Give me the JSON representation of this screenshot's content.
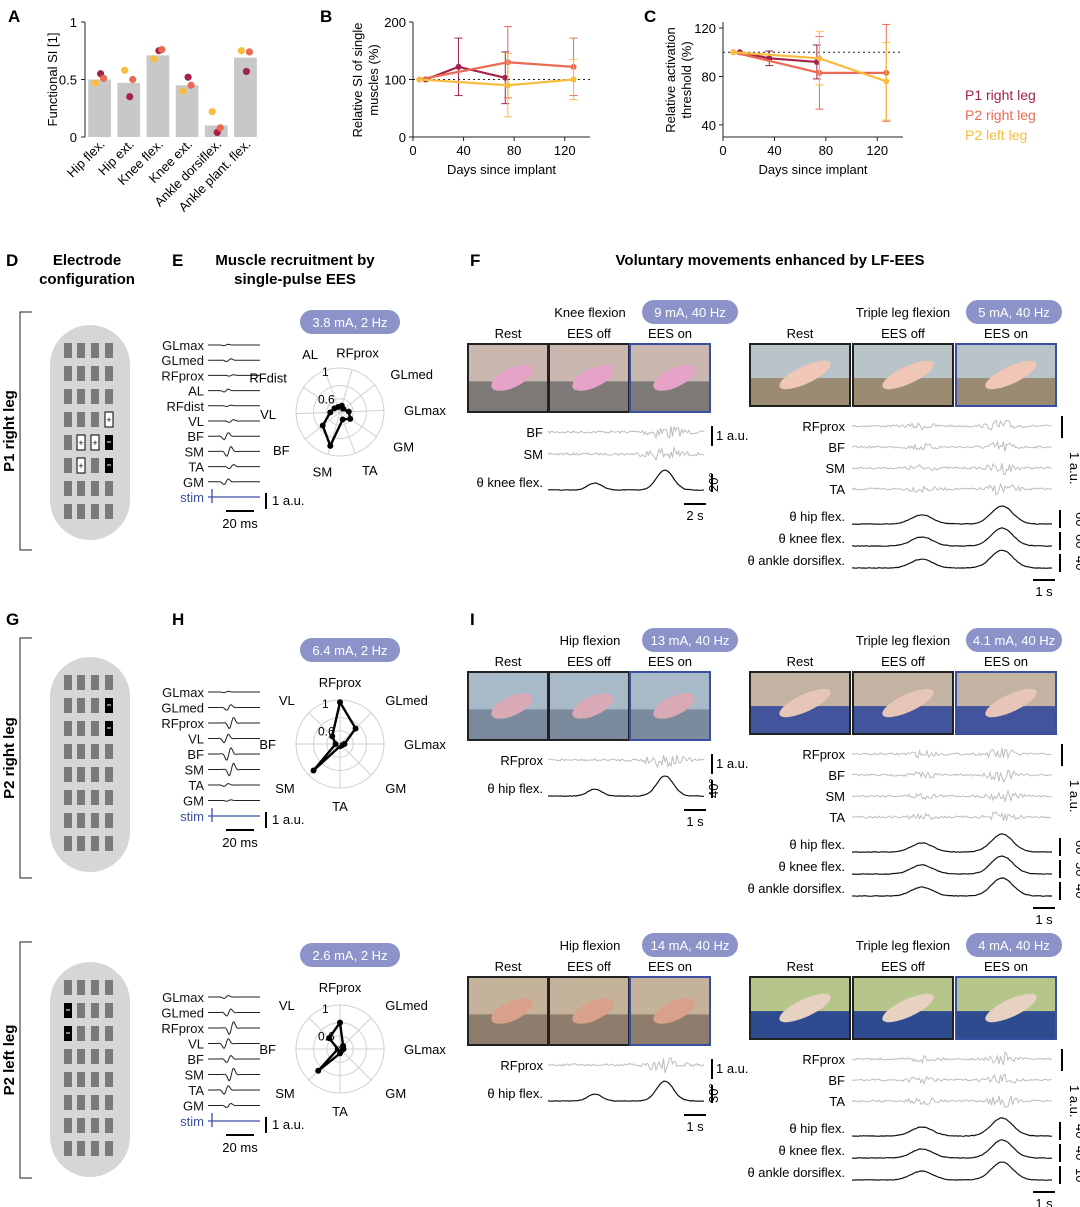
{
  "panel_letters": [
    "A",
    "B",
    "C",
    "D",
    "E",
    "F",
    "G",
    "H",
    "I"
  ],
  "colors": {
    "p1_right": "#a3234a",
    "p2_right": "#ea6a55",
    "p2_left": "#f8bd3e",
    "bar": "#c8c8c8",
    "stim": "#3a4fa3",
    "pill": "#8b93c9",
    "emg": "#bdbdbd"
  },
  "chart_data": [
    {
      "type": "bar",
      "panel": "A",
      "ylabel": "Functional SI [1]",
      "ylim": [
        0,
        1
      ],
      "yticks": [
        "0",
        "0.5",
        "1"
      ],
      "categories": [
        "Hip flex.",
        "Hip ext.",
        "Knee flex.",
        "Knee ext.",
        "Ankle dorsiflex.",
        "Ankle plant. flex."
      ],
      "values": [
        0.5,
        0.47,
        0.71,
        0.45,
        0.1,
        0.69
      ],
      "points": {
        "p1_right": [
          0.55,
          0.35,
          0.75,
          0.52,
          0.04,
          0.57
        ],
        "p2_right": [
          0.51,
          0.5,
          0.76,
          0.45,
          0.08,
          0.74
        ],
        "p2_left": [
          0.47,
          0.58,
          0.68,
          0.4,
          0.22,
          0.75
        ]
      }
    },
    {
      "type": "line",
      "panel": "B",
      "xlabel": "Days since implant",
      "ylabel": "Relative SI of single muscles (%)",
      "xlim": [
        0,
        140
      ],
      "ylim": [
        0,
        200
      ],
      "xticks": [
        "0",
        "40",
        "80",
        "120"
      ],
      "yticks": [
        "0",
        "100",
        "200"
      ],
      "series": [
        {
          "name": "P1 right leg",
          "x": [
            10,
            36,
            73
          ],
          "y": [
            100,
            122,
            103
          ],
          "err": [
            0,
            50,
            45
          ]
        },
        {
          "name": "P2 right leg",
          "x": [
            5,
            75,
            127
          ],
          "y": [
            100,
            130,
            122
          ],
          "err": [
            0,
            62,
            50
          ]
        },
        {
          "name": "P2 left leg",
          "x": [
            5,
            75,
            127
          ],
          "y": [
            100,
            90,
            100
          ],
          "err": [
            0,
            55,
            35
          ]
        }
      ]
    },
    {
      "type": "line",
      "panel": "C",
      "xlabel": "Days since implant",
      "ylabel": "Relative activation threshold (%)",
      "xlim": [
        0,
        140
      ],
      "ylim": [
        30,
        125
      ],
      "xticks": [
        "0",
        "40",
        "80",
        "120"
      ],
      "yticks": [
        "40",
        "80",
        "120"
      ],
      "series": [
        {
          "name": "P1 right leg",
          "x": [
            13,
            36,
            73
          ],
          "y": [
            100,
            95,
            92
          ],
          "err": [
            0,
            6,
            14
          ]
        },
        {
          "name": "P2 right leg",
          "x": [
            8,
            75,
            127
          ],
          "y": [
            100,
            83,
            83
          ],
          "err": [
            0,
            30,
            40
          ]
        },
        {
          "name": "P2 left leg",
          "x": [
            8,
            75,
            127
          ],
          "y": [
            100,
            95,
            76
          ],
          "err": [
            0,
            22,
            32
          ]
        }
      ]
    }
  ],
  "legend": [
    "P1 right leg",
    "P2 right leg",
    "P2 left leg"
  ],
  "headings": {
    "d": [
      "Electrode",
      "configuration"
    ],
    "e": [
      "Muscle recruitment by",
      "single-pulse EES"
    ],
    "f": "Voluntary movements enhanced by LF-EES"
  },
  "rows": [
    {
      "label": "P1 right leg",
      "pill": "3.8 mA, 2 Hz",
      "traces": [
        "GLmax",
        "GLmed",
        "RFprox",
        "AL",
        "RFdist",
        "VL",
        "BF",
        "SM",
        "TA",
        "GM",
        "stim"
      ],
      "radar_labels": [
        "AL",
        "RFprox",
        "GLmed",
        "GLmax",
        "GM",
        "TA",
        "SM",
        "BF",
        "VL",
        "RFdist"
      ],
      "radar_values": [
        0.12,
        0.15,
        0.1,
        0.2,
        0.28,
        0.18,
        0.8,
        0.5,
        0.22,
        0.15
      ],
      "scale_y": "1 a.u.",
      "scale_x": "20 ms",
      "left": {
        "title": "Knee flexion",
        "pill": "9 mA, 40 Hz",
        "cols": [
          "Rest",
          "EES off",
          "EES on"
        ],
        "emg": [
          "BF",
          "SM"
        ],
        "emg_scale": "1 a.u.",
        "kin": [
          "θ knee flex."
        ],
        "kin_scale": [
          "20°"
        ],
        "time_scale": "2 s"
      },
      "right": {
        "title": "Triple leg flexion",
        "pill": "5 mA, 40 Hz",
        "cols": [
          "Rest",
          "EES off",
          "EES on"
        ],
        "emg": [
          "RFprox",
          "BF",
          "SM",
          "TA"
        ],
        "emg_scale": "1 a.u.",
        "kin": [
          "θ hip flex.",
          "θ knee flex.",
          "θ ankle dorsiflex."
        ],
        "kin_scale": [
          "60°",
          "60°",
          "40°"
        ],
        "time_scale": "1 s"
      }
    },
    {
      "label": "P2 right leg",
      "pill": "6.4 mA, 2 Hz",
      "traces": [
        "GLmax",
        "GLmed",
        "RFprox",
        "VL",
        "BF",
        "SM",
        "TA",
        "GM",
        "stim"
      ],
      "radar_labels": [
        "RFprox",
        "GLmed",
        "GLmax",
        "GM",
        "TA",
        "SM",
        "BF",
        "VL"
      ],
      "radar_values": [
        0.95,
        0.5,
        0.1,
        0.05,
        0.05,
        0.85,
        0.1,
        0.25
      ],
      "scale_y": "1 a.u.",
      "scale_x": "20 ms",
      "left": {
        "title": "Hip flexion",
        "pill": "13 mA, 40 Hz",
        "cols": [
          "Rest",
          "EES off",
          "EES on"
        ],
        "emg": [
          "RFprox"
        ],
        "emg_scale": "1 a.u.",
        "kin": [
          "θ hip flex."
        ],
        "kin_scale": [
          "40°"
        ],
        "time_scale": "1 s"
      },
      "right": {
        "title": "Triple leg flexion",
        "pill": "4.1 mA, 40 Hz",
        "cols": [
          "Rest",
          "EES off",
          "EES on"
        ],
        "emg": [
          "RFprox",
          "BF",
          "SM",
          "TA"
        ],
        "emg_scale": "1 a.u.",
        "kin": [
          "θ hip flex.",
          "θ knee flex.",
          "θ ankle dorsiflex."
        ],
        "kin_scale": [
          "60°",
          "50°",
          "40°"
        ],
        "time_scale": "1 s"
      }
    },
    {
      "label": "P2 left leg",
      "pill": "2.6 mA, 2 Hz",
      "traces": [
        "GLmax",
        "GLmed",
        "RFprox",
        "VL",
        "BF",
        "SM",
        "TA",
        "GM",
        "stim"
      ],
      "radar_labels": [
        "RFprox",
        "GLmed",
        "GLmax",
        "GM",
        "TA",
        "SM",
        "BF",
        "VL"
      ],
      "radar_values": [
        0.6,
        0.1,
        0.08,
        0.05,
        0.1,
        0.7,
        0.05,
        0.35
      ],
      "scale_y": "1 a.u.",
      "scale_x": "20 ms",
      "left": {
        "title": "Hip flexion",
        "pill": "14 mA, 40 Hz",
        "cols": [
          "Rest",
          "EES off",
          "EES on"
        ],
        "emg": [
          "RFprox"
        ],
        "emg_scale": "1 a.u.",
        "kin": [
          "θ hip flex."
        ],
        "kin_scale": [
          "30°"
        ],
        "time_scale": "1 s"
      },
      "right": {
        "title": "Triple leg flexion",
        "pill": "4 mA, 40 Hz",
        "cols": [
          "Rest",
          "EES off",
          "EES on"
        ],
        "emg": [
          "RFprox",
          "BF",
          "TA"
        ],
        "emg_scale": "1 a.u.",
        "kin": [
          "θ hip flex.",
          "θ knee flex.",
          "θ ankle dorsiflex."
        ],
        "kin_scale": [
          "40°",
          "40°",
          "10°"
        ],
        "time_scale": "1 s"
      }
    }
  ]
}
